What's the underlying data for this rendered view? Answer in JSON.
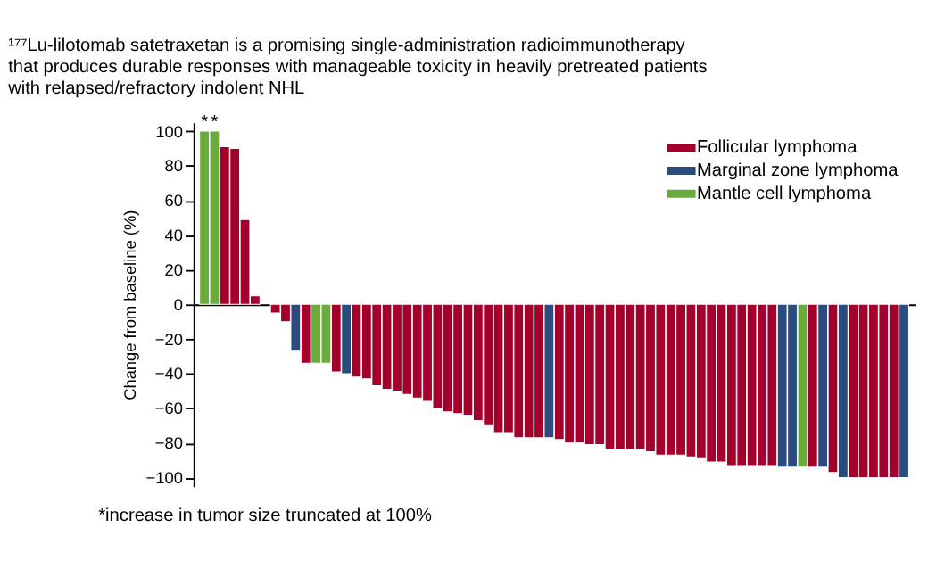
{
  "chart_data": {
    "type": "bar",
    "title": [
      "¹⁷⁷Lu-lilotomab satetraxetan is a promising single-administration radioimmunotherapy",
      "that produces durable responses with manageable toxicity in heavily pretreated patients",
      "with relapsed/refractory indolent NHL"
    ],
    "ylabel": "Change from baseline (%)",
    "categories": [
      null,
      null,
      null,
      null,
      null,
      null,
      null,
      null,
      null,
      null,
      null,
      null,
      null,
      null,
      null,
      null,
      null,
      null,
      null,
      null,
      null,
      null,
      null,
      null,
      null,
      null,
      null,
      null,
      null,
      null,
      null,
      null,
      null,
      null,
      null,
      null,
      null,
      null,
      null,
      null,
      null,
      null,
      null,
      null,
      null,
      null,
      null,
      null,
      null,
      null,
      null,
      null,
      null,
      null,
      null,
      null,
      null,
      null,
      null,
      null,
      null,
      null,
      null,
      null,
      null,
      null,
      null,
      null,
      null,
      null
    ],
    "series": [
      {
        "name": "Follicular lymphoma",
        "color": "#a3002c",
        "values": [
          null,
          null,
          91,
          90,
          49,
          5,
          null,
          -5,
          -10,
          null,
          -34,
          null,
          null,
          -39,
          null,
          -42,
          -43,
          -47,
          -49,
          -50,
          -52,
          -54,
          -56,
          -60,
          -62,
          -63,
          -64,
          -67,
          -70,
          -74,
          -74,
          -77,
          -77,
          -77,
          null,
          -78,
          -80,
          -80,
          -81,
          -81,
          -84,
          -84,
          -84,
          -84,
          -85,
          -87,
          -87,
          -87,
          -88,
          -89,
          -91,
          -91,
          -93,
          -93,
          -93,
          -93,
          -93,
          null,
          null,
          null,
          -94,
          null,
          -97,
          null,
          -100,
          -100,
          -100,
          -100,
          -100,
          null
        ]
      },
      {
        "name": "Marginal zone lymphoma",
        "color": "#2b4a7e",
        "values": [
          null,
          null,
          null,
          null,
          null,
          null,
          null,
          null,
          null,
          -27,
          null,
          null,
          null,
          null,
          -40,
          null,
          null,
          null,
          null,
          null,
          null,
          null,
          null,
          null,
          null,
          null,
          null,
          null,
          null,
          null,
          null,
          null,
          null,
          null,
          -77,
          null,
          null,
          null,
          null,
          null,
          null,
          null,
          null,
          null,
          null,
          null,
          null,
          null,
          null,
          null,
          null,
          null,
          null,
          null,
          null,
          null,
          null,
          -94,
          -94,
          null,
          null,
          -94,
          null,
          -100,
          null,
          null,
          null,
          null,
          null,
          -100
        ]
      },
      {
        "name": "Mantle cell lymphoma",
        "color": "#6bab3c",
        "values": [
          100,
          100,
          null,
          null,
          null,
          null,
          null,
          null,
          null,
          null,
          null,
          -34,
          -34,
          null,
          null,
          null,
          null,
          null,
          null,
          null,
          null,
          null,
          null,
          null,
          null,
          null,
          null,
          null,
          null,
          null,
          null,
          null,
          null,
          null,
          null,
          null,
          null,
          null,
          null,
          null,
          null,
          null,
          null,
          null,
          null,
          null,
          null,
          null,
          null,
          null,
          null,
          null,
          null,
          null,
          null,
          null,
          null,
          null,
          null,
          -94,
          null,
          null,
          null,
          null,
          null,
          null,
          null,
          null,
          null,
          null
        ],
        "value_labels": [
          "*",
          "*",
          null,
          null,
          null,
          null,
          null,
          null,
          null,
          null,
          null,
          null,
          null,
          null,
          null,
          null,
          null,
          null,
          null,
          null,
          null,
          null,
          null,
          null,
          null,
          null,
          null,
          null,
          null,
          null,
          null,
          null,
          null,
          null,
          null,
          null,
          null,
          null,
          null,
          null,
          null,
          null,
          null,
          null,
          null,
          null,
          null,
          null,
          null,
          null,
          null,
          null,
          null,
          null,
          null,
          null,
          null,
          null,
          null,
          null,
          null,
          null,
          null,
          null,
          null,
          null,
          null,
          null,
          null,
          null
        ]
      }
    ],
    "ylim": [
      -105,
      105
    ],
    "yticks": [
      -100,
      -80,
      -60,
      -40,
      -20,
      0,
      20,
      40,
      60,
      80,
      100
    ],
    "tick_labels": "y",
    "legend": "top right",
    "annotations": [
      "*increase in tumor size truncated at 100%"
    ]
  }
}
